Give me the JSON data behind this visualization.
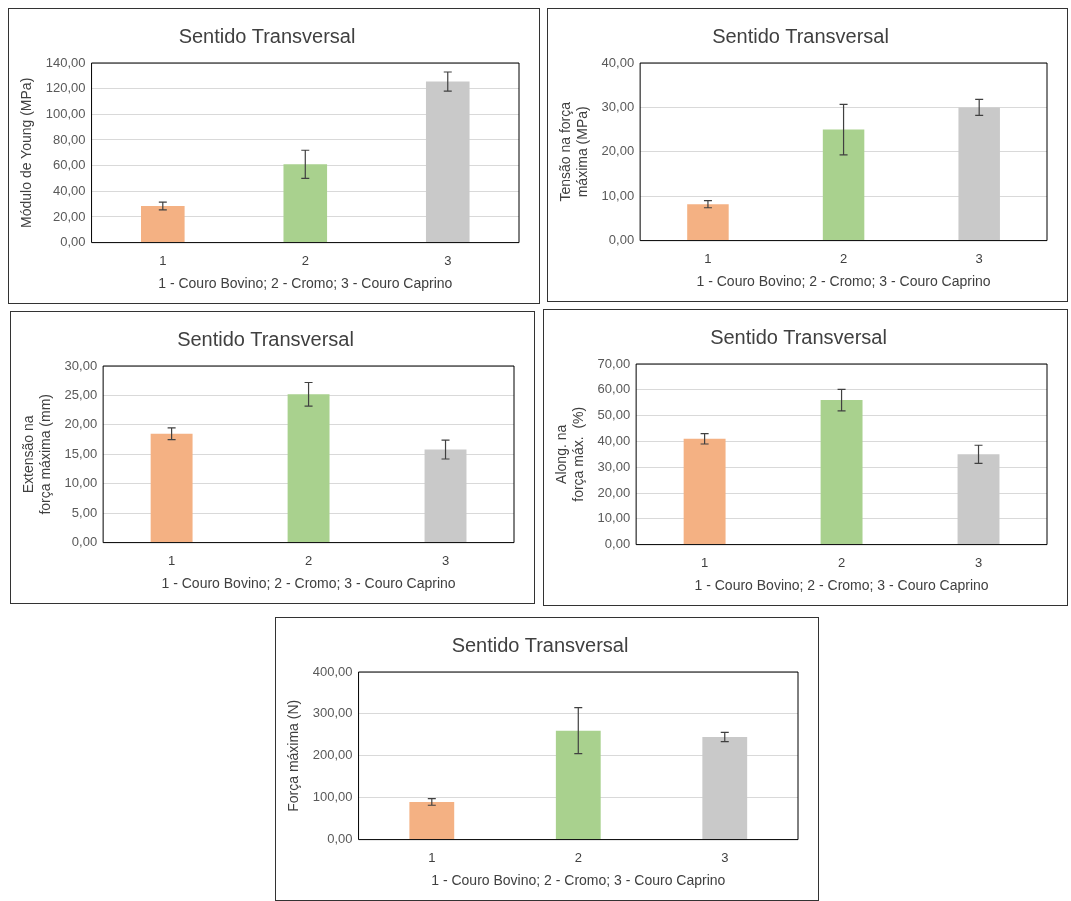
{
  "chart_data": [
    {
      "type": "bar",
      "title": "Sentido Transversal",
      "xlabel": "1 - Couro Bovino; 2 - Cromo; 3 - Couro Caprino",
      "ylabel": "Módulo de Young (MPa)",
      "categories": [
        "1",
        "2",
        "3"
      ],
      "values": [
        28.5,
        61,
        125.5
      ],
      "errors": [
        3,
        11,
        7.5
      ],
      "colors": [
        "#f4b183",
        "#a9d18e",
        "#c9c9c9"
      ],
      "ylim": [
        0,
        140
      ],
      "yticks": [
        {
          "value": 0,
          "label": "0,00"
        },
        {
          "value": 20,
          "label": "20,00"
        },
        {
          "value": 40,
          "label": "40,00"
        },
        {
          "value": 60,
          "label": "60,00"
        },
        {
          "value": 80,
          "label": "80,00"
        },
        {
          "value": 100,
          "label": "100,00"
        },
        {
          "value": 120,
          "label": "120,00"
        },
        {
          "value": 140,
          "label": "140,00"
        }
      ],
      "grid": "y",
      "legend": false
    },
    {
      "type": "bar",
      "title": "Sentido Transversal",
      "xlabel": "1 - Couro Bovino; 2 - Cromo; 3 - Couro Caprino",
      "ylabel": "Tensão na força máxima (MPa)",
      "categories": [
        "1",
        "2",
        "3"
      ],
      "values": [
        8.2,
        25,
        30
      ],
      "errors": [
        0.8,
        5.7,
        1.8
      ],
      "colors": [
        "#f4b183",
        "#a9d18e",
        "#c9c9c9"
      ],
      "ylim": [
        0,
        40
      ],
      "yticks": [
        {
          "value": 0,
          "label": "0,00"
        },
        {
          "value": 10,
          "label": "10,00"
        },
        {
          "value": 20,
          "label": "20,00"
        },
        {
          "value": 30,
          "label": "30,00"
        },
        {
          "value": 40,
          "label": "40,00"
        }
      ],
      "grid": "y",
      "legend": false
    },
    {
      "type": "bar",
      "title": "Sentido Transversal",
      "xlabel": "1 - Couro Bovino; 2 - Cromo; 3 - Couro Caprino",
      "ylabel": "Extensão na força máxima (mm)",
      "categories": [
        "1",
        "2",
        "3"
      ],
      "values": [
        18.5,
        25.2,
        15.8
      ],
      "errors": [
        1,
        2,
        1.6
      ],
      "colors": [
        "#f4b183",
        "#a9d18e",
        "#c9c9c9"
      ],
      "ylim": [
        0,
        30
      ],
      "yticks": [
        {
          "value": 0,
          "label": "0,00"
        },
        {
          "value": 5,
          "label": "5,00"
        },
        {
          "value": 10,
          "label": "10,00"
        },
        {
          "value": 15,
          "label": "15,00"
        },
        {
          "value": 20,
          "label": "20,00"
        },
        {
          "value": 25,
          "label": "25,00"
        },
        {
          "value": 30,
          "label": "30,00"
        }
      ],
      "grid": "y",
      "legend": false
    },
    {
      "type": "bar",
      "title": "Sentido Transversal",
      "xlabel": "1 - Couro Bovino; 2 - Cromo; 3 - Couro Caprino",
      "ylabel": "Along. na força máx.  (%)",
      "categories": [
        "1",
        "2",
        "3"
      ],
      "values": [
        41,
        56,
        35
      ],
      "errors": [
        2,
        4.2,
        3.5
      ],
      "colors": [
        "#f4b183",
        "#a9d18e",
        "#c9c9c9"
      ],
      "ylim": [
        0,
        70
      ],
      "yticks": [
        {
          "value": 0,
          "label": "0,00"
        },
        {
          "value": 10,
          "label": "10,00"
        },
        {
          "value": 20,
          "label": "20,00"
        },
        {
          "value": 30,
          "label": "30,00"
        },
        {
          "value": 40,
          "label": "40,00"
        },
        {
          "value": 50,
          "label": "50,00"
        },
        {
          "value": 60,
          "label": "60,00"
        },
        {
          "value": 70,
          "label": "70,00"
        }
      ],
      "grid": "y",
      "legend": false
    },
    {
      "type": "bar",
      "title": "Sentido Transversal",
      "xlabel": "1 - Couro Bovino; 2 - Cromo; 3 - Couro Caprino",
      "ylabel": "Força máxima (N)",
      "categories": [
        "1",
        "2",
        "3"
      ],
      "values": [
        90,
        260,
        245
      ],
      "errors": [
        8,
        55,
        11
      ],
      "colors": [
        "#f4b183",
        "#a9d18e",
        "#c9c9c9"
      ],
      "ylim": [
        0,
        400
      ],
      "yticks": [
        {
          "value": 0,
          "label": "0,00"
        },
        {
          "value": 100,
          "label": "100,00"
        },
        {
          "value": 200,
          "label": "200,00"
        },
        {
          "value": 300,
          "label": "300,00"
        },
        {
          "value": 400,
          "label": "400,00"
        }
      ],
      "grid": "y",
      "legend": false
    }
  ]
}
